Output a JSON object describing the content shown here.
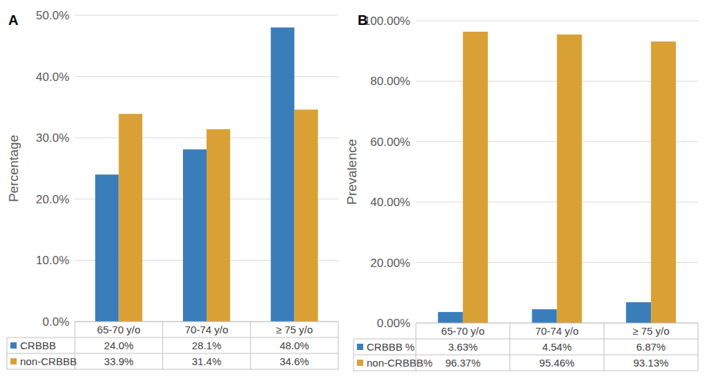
{
  "chart_data": [
    {
      "type": "bar",
      "title": "A",
      "y_label": "Percentage",
      "categories": [
        "65-70 y/o",
        "70-74 y/o",
        "≥ 75 y/o"
      ],
      "series": [
        {
          "name": "CRBBB",
          "color": "#3a7dbb",
          "values": [
            24.0,
            28.1,
            48.0
          ],
          "value_labels": [
            "24.0%",
            "28.1%",
            "48.0%"
          ]
        },
        {
          "name": "non-CRBBB",
          "color": "#d9a035",
          "values": [
            33.9,
            31.4,
            34.6
          ],
          "value_labels": [
            "33.9%",
            "31.4%",
            "34.6%"
          ]
        }
      ],
      "ylim": [
        0,
        50
      ],
      "yticks": [
        {
          "value": 0,
          "label": "0.0%"
        },
        {
          "value": 10,
          "label": "10.0%"
        },
        {
          "value": 20,
          "label": "20.0%"
        },
        {
          "value": 30,
          "label": "30.0%"
        },
        {
          "value": 40,
          "label": "40.0%"
        },
        {
          "value": 50,
          "label": "50.0%"
        }
      ],
      "grid": true
    },
    {
      "type": "bar",
      "title": "B",
      "y_label": "Prevalence",
      "categories": [
        "65-70 y/o",
        "70-74 y/o",
        "≥ 75 y/o"
      ],
      "series": [
        {
          "name": "CRBBB %",
          "color": "#3a7dbb",
          "values": [
            3.63,
            4.54,
            6.87
          ],
          "value_labels": [
            "3.63%",
            "4.54%",
            "6.87%"
          ]
        },
        {
          "name": "non-CRBBB%",
          "color": "#d9a035",
          "values": [
            96.37,
            95.46,
            93.13
          ],
          "value_labels": [
            "96.37%",
            "95.46%",
            "93.13%"
          ]
        }
      ],
      "ylim": [
        0,
        100
      ],
      "yticks": [
        {
          "value": 0,
          "label": "0.00%"
        },
        {
          "value": 20,
          "label": "20.00%"
        },
        {
          "value": 40,
          "label": "40.00%"
        },
        {
          "value": 60,
          "label": "60.00%"
        },
        {
          "value": 80,
          "label": "80.00%"
        },
        {
          "value": 100,
          "label": "100.00%"
        }
      ],
      "grid": true
    }
  ]
}
